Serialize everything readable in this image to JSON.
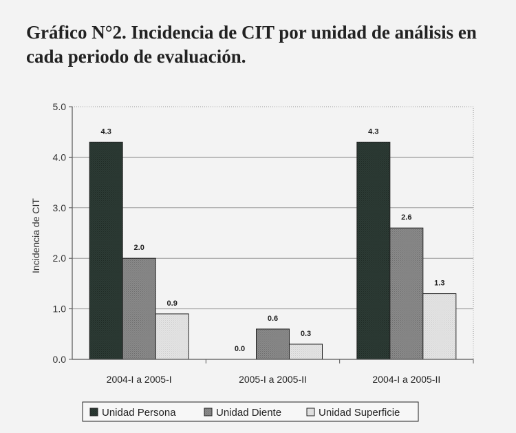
{
  "title": "Gráfico N°2. Incidencia de CIT por unidad de análisis en cada periodo de evaluación.",
  "colors": {
    "persona": "#2d3b35",
    "diente": "#8a8a8a",
    "superficie": "#e4e4e4",
    "grid": "#9a9a9a",
    "axis": "#555555"
  },
  "chart_data": {
    "type": "bar",
    "categories": [
      "2004-I a 2005-I",
      "2005-I a 2005-II",
      "2004-I a 2005-II"
    ],
    "series": [
      {
        "name": "Unidad Persona",
        "values": [
          4.3,
          0.0,
          4.3
        ],
        "labels": [
          "4.3",
          "0.0",
          "4.3"
        ]
      },
      {
        "name": "Unidad Diente",
        "values": [
          2.0,
          0.6,
          2.6
        ],
        "labels": [
          "2.0",
          "0.6",
          "2.6"
        ]
      },
      {
        "name": "Unidad Superficie",
        "values": [
          0.9,
          0.3,
          1.3
        ],
        "labels": [
          "0.9",
          "0.3",
          "1.3"
        ]
      }
    ],
    "ylabel": "Incidencia de CIT",
    "xlabel": "",
    "ylim": [
      0,
      5
    ],
    "yticks": [
      "0.0",
      "1.0",
      "2.0",
      "3.0",
      "4.0",
      "5.0"
    ],
    "grid": true,
    "legend": "bottom"
  }
}
